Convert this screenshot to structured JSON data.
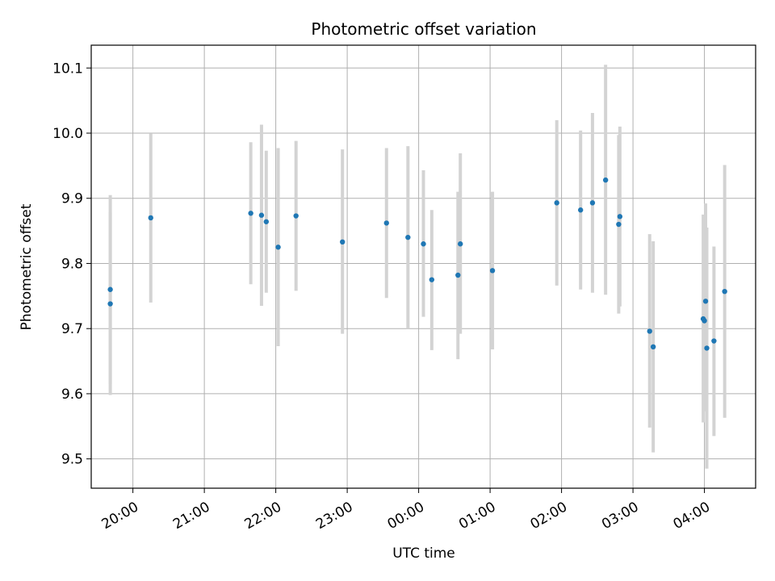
{
  "chart_data": {
    "type": "scatter",
    "title": "Photometric offset variation",
    "xlabel": "UTC time",
    "ylabel": "Photometric offset",
    "x_ticks": [
      "20:00",
      "21:00",
      "22:00",
      "23:00",
      "00:00",
      "01:00",
      "02:00",
      "03:00",
      "04:00"
    ],
    "y_ticks": [
      "9.5",
      "9.6",
      "9.7",
      "9.8",
      "9.9",
      "10.0",
      "10.1"
    ],
    "xlim": [
      "19:25",
      "04:43"
    ],
    "ylim": [
      9.455,
      10.135
    ],
    "grid": true,
    "marker_color": "#1f77b4",
    "errorbar_color": "#d3d3d3",
    "points": [
      {
        "x": "19:41",
        "y": 9.738,
        "ylow": 9.598,
        "yhigh": 9.878
      },
      {
        "x": "19:41",
        "y": 9.76,
        "ylow": 9.615,
        "yhigh": 9.905
      },
      {
        "x": "20:15",
        "y": 9.87,
        "ylow": 9.74,
        "yhigh": 9.999
      },
      {
        "x": "21:39",
        "y": 9.877,
        "ylow": 9.768,
        "yhigh": 9.986
      },
      {
        "x": "21:48",
        "y": 9.874,
        "ylow": 9.735,
        "yhigh": 10.013
      },
      {
        "x": "21:52",
        "y": 9.864,
        "ylow": 9.755,
        "yhigh": 9.973
      },
      {
        "x": "22:02",
        "y": 9.825,
        "ylow": 9.673,
        "yhigh": 9.977
      },
      {
        "x": "22:17",
        "y": 9.873,
        "ylow": 9.758,
        "yhigh": 9.988
      },
      {
        "x": "22:56",
        "y": 9.833,
        "ylow": 9.692,
        "yhigh": 9.975
      },
      {
        "x": "23:33",
        "y": 9.862,
        "ylow": 9.747,
        "yhigh": 9.977
      },
      {
        "x": "23:51",
        "y": 9.84,
        "ylow": 9.7,
        "yhigh": 9.98
      },
      {
        "x": "00:04",
        "y": 9.83,
        "ylow": 9.718,
        "yhigh": 9.943
      },
      {
        "x": "00:11",
        "y": 9.775,
        "ylow": 9.667,
        "yhigh": 9.882
      },
      {
        "x": "00:33",
        "y": 9.782,
        "ylow": 9.653,
        "yhigh": 9.91
      },
      {
        "x": "00:35",
        "y": 9.83,
        "ylow": 9.692,
        "yhigh": 9.969
      },
      {
        "x": "01:02",
        "y": 9.789,
        "ylow": 9.668,
        "yhigh": 9.91
      },
      {
        "x": "01:56",
        "y": 9.893,
        "ylow": 9.766,
        "yhigh": 10.02
      },
      {
        "x": "02:16",
        "y": 9.882,
        "ylow": 9.76,
        "yhigh": 10.004
      },
      {
        "x": "02:26",
        "y": 9.893,
        "ylow": 9.755,
        "yhigh": 10.031
      },
      {
        "x": "02:37",
        "y": 9.928,
        "ylow": 9.752,
        "yhigh": 10.105
      },
      {
        "x": "02:48",
        "y": 9.86,
        "ylow": 9.723,
        "yhigh": 9.997
      },
      {
        "x": "02:49",
        "y": 9.872,
        "ylow": 9.734,
        "yhigh": 10.01
      },
      {
        "x": "03:14",
        "y": 9.696,
        "ylow": 9.548,
        "yhigh": 9.845
      },
      {
        "x": "03:17",
        "y": 9.672,
        "ylow": 9.51,
        "yhigh": 9.834
      },
      {
        "x": "03:59",
        "y": 9.715,
        "ylow": 9.556,
        "yhigh": 9.875
      },
      {
        "x": "04:00",
        "y": 9.712,
        "ylow": 9.573,
        "yhigh": 9.852
      },
      {
        "x": "04:01",
        "y": 9.742,
        "ylow": 9.592,
        "yhigh": 9.892
      },
      {
        "x": "04:02",
        "y": 9.67,
        "ylow": 9.485,
        "yhigh": 9.855
      },
      {
        "x": "04:08",
        "y": 9.681,
        "ylow": 9.535,
        "yhigh": 9.826
      },
      {
        "x": "04:17",
        "y": 9.757,
        "ylow": 9.563,
        "yhigh": 9.951
      }
    ]
  }
}
